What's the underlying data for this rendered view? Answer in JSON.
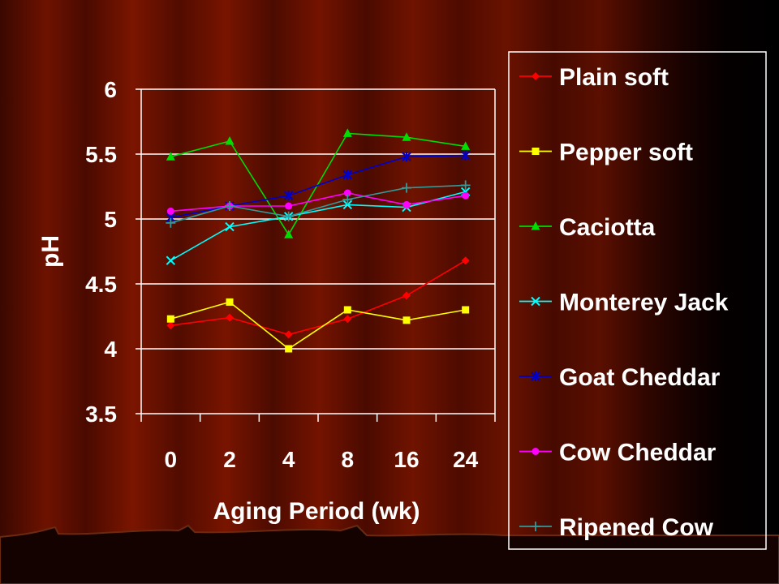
{
  "chart_data": {
    "type": "line",
    "categories": [
      "0",
      "2",
      "4",
      "8",
      "16",
      "24"
    ],
    "xlabel": "Aging Period (wk)",
    "ylabel": "pH",
    "ylim": [
      3.5,
      6
    ],
    "yticks": [
      "3.5",
      "4",
      "4.5",
      "5",
      "5.5",
      "6"
    ],
    "grid": true,
    "legend_position": "right",
    "series": [
      {
        "name": "Plain soft",
        "values": [
          4.18,
          4.24,
          4.11,
          4.23,
          4.41,
          4.68
        ],
        "color": "#ff0000",
        "marker": "diamond"
      },
      {
        "name": "Pepper soft",
        "values": [
          4.23,
          4.36,
          4.0,
          4.3,
          4.22,
          4.3
        ],
        "color": "#ffff00",
        "marker": "square"
      },
      {
        "name": "Caciotta",
        "values": [
          5.48,
          5.6,
          4.88,
          5.66,
          5.63,
          5.56
        ],
        "color": "#00dd00",
        "marker": "triangle"
      },
      {
        "name": "Monterey Jack",
        "values": [
          4.68,
          4.94,
          5.02,
          5.11,
          5.09,
          5.21
        ],
        "color": "#00ffff",
        "marker": "x"
      },
      {
        "name": "Goat Cheddar",
        "values": [
          5.01,
          5.1,
          5.18,
          5.34,
          5.48,
          5.49
        ],
        "color": "#0000cc",
        "marker": "star"
      },
      {
        "name": "Cow Cheddar",
        "values": [
          5.06,
          5.1,
          5.1,
          5.2,
          5.11,
          5.18
        ],
        "color": "#ff00ff",
        "marker": "circle"
      },
      {
        "name": "Ripened Cow",
        "values": [
          4.97,
          5.1,
          5.02,
          5.15,
          5.24,
          5.26
        ],
        "color": "#339999",
        "marker": "plus"
      }
    ]
  }
}
